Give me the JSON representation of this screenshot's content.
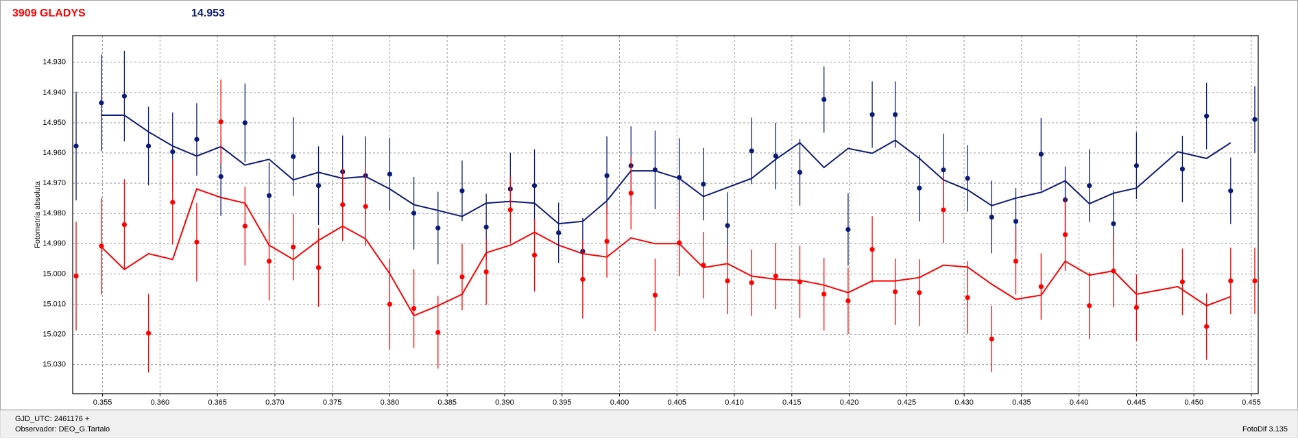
{
  "chart_data": {
    "type": "scatter",
    "title": "3909 GLADYS",
    "subtitle": "14.953",
    "y_label": "Fotometría absoluta",
    "xlim": [
      0.3524,
      0.4556
    ],
    "ylim": [
      15.0396,
      14.9212
    ],
    "grid": true,
    "xticks": [
      0.355,
      {
        "value": 0.36,
        "label": "0.360"
      },
      0.365,
      {
        "value": 0.37,
        "label": "0.370"
      },
      0.375,
      {
        "value": 0.38,
        "label": "0.380"
      },
      0.385,
      {
        "value": 0.39,
        "label": "0.390"
      },
      0.395,
      {
        "value": 0.4,
        "label": "0.400"
      },
      0.405,
      {
        "value": 0.41,
        "label": "0.410"
      },
      0.415,
      {
        "value": 0.42,
        "label": "0.420"
      },
      0.425,
      {
        "value": 0.43,
        "label": "0.430"
      },
      0.435,
      {
        "value": 0.44,
        "label": "0.440"
      },
      0.445,
      {
        "value": 0.45,
        "label": "0.450"
      },
      0.455
    ],
    "yticks": [
      {
        "value": 14.93,
        "label": "14.930"
      },
      {
        "value": 14.94,
        "label": "14.940"
      },
      {
        "value": 14.95,
        "label": "14.950"
      },
      {
        "value": 14.96,
        "label": "14.960"
      },
      {
        "value": 14.97,
        "label": "14.970"
      },
      {
        "value": 14.98,
        "label": "14.980"
      },
      {
        "value": 14.99,
        "label": "14.990"
      },
      {
        "value": 15.0,
        "label": "15.000"
      },
      {
        "value": 15.01,
        "label": "15.010"
      },
      {
        "value": 15.02,
        "label": "15.020"
      },
      {
        "value": 15.03,
        "label": "15.030"
      }
    ],
    "series": [
      {
        "mode": "line",
        "color": "#0b1a78",
        "x": [
          0.3549,
          0.3569,
          0.359,
          0.3611,
          0.3632,
          0.3653,
          0.3674,
          0.3695,
          0.3716,
          0.3738,
          0.3759,
          0.3779,
          0.38,
          0.3821,
          0.3842,
          0.3863,
          0.3884,
          0.3905,
          0.3926,
          0.3947,
          0.3968,
          0.3989,
          0.401,
          0.4031,
          0.4052,
          0.4073,
          0.4094,
          0.4115,
          0.4136,
          0.4157,
          0.4178,
          0.4199,
          0.422,
          0.424,
          0.4261,
          0.4282,
          0.4303,
          0.4324,
          0.4345,
          0.4367,
          0.4388,
          0.4409,
          0.443,
          0.445,
          0.4486,
          0.4511,
          0.4532
        ],
        "values": [
          14.9475,
          14.9475,
          14.953,
          14.9577,
          14.961,
          14.9579,
          14.964,
          14.9621,
          14.9689,
          14.9664,
          14.9684,
          14.9678,
          14.9719,
          14.9771,
          14.979,
          14.981,
          14.9766,
          14.976,
          14.9766,
          14.9834,
          14.9826,
          14.9758,
          14.9659,
          14.9659,
          14.9684,
          14.9744,
          14.9714,
          14.9684,
          14.9621,
          14.9566,
          14.9648,
          14.9585,
          14.9601,
          14.9558,
          14.9618,
          14.9689,
          14.9722,
          14.9774,
          14.9749,
          14.973,
          14.9692,
          14.9768,
          14.9733,
          14.9716,
          14.9596,
          14.9618,
          14.9566
        ]
      },
      {
        "mode": "line",
        "color": "#ff0000",
        "x": [
          0.3549,
          0.3569,
          0.359,
          0.3611,
          0.3632,
          0.3653,
          0.3674,
          0.3695,
          0.3716,
          0.3738,
          0.3759,
          0.3779,
          0.38,
          0.3821,
          0.3842,
          0.3863,
          0.3884,
          0.3905,
          0.3926,
          0.3947,
          0.3968,
          0.3989,
          0.401,
          0.4031,
          0.4052,
          0.4073,
          0.4094,
          0.4115,
          0.4136,
          0.4157,
          0.4178,
          0.4199,
          0.422,
          0.424,
          0.4261,
          0.4282,
          0.4303,
          0.4324,
          0.4345,
          0.4367,
          0.4388,
          0.4409,
          0.443,
          0.445,
          0.4486,
          0.4511,
          0.4532
        ],
        "values": [
          14.9911,
          14.9985,
          14.9933,
          14.9952,
          14.9719,
          14.9747,
          14.9766,
          14.9905,
          14.9952,
          14.9889,
          14.9842,
          14.9884,
          14.9999,
          15.0138,
          15.0105,
          15.0067,
          14.993,
          14.9905,
          14.9862,
          14.9905,
          14.9933,
          14.9944,
          14.9881,
          14.99,
          14.99,
          14.9979,
          14.9966,
          15.0007,
          15.0018,
          15.0021,
          15.0037,
          15.0062,
          15.0023,
          15.0023,
          15.0012,
          14.9971,
          14.9977,
          15.0034,
          15.0084,
          15.007,
          14.9958,
          15.0004,
          14.999,
          15.0067,
          15.0042,
          15.0105,
          15.0075
        ]
      },
      {
        "mode": "points",
        "color": "#0b1a78",
        "x": [
          0.3527,
          0.3549,
          0.3569,
          0.359,
          0.3611,
          0.3632,
          0.3653,
          0.3674,
          0.3695,
          0.3716,
          0.3738,
          0.3759,
          0.3779,
          0.38,
          0.3821,
          0.3842,
          0.3863,
          0.3884,
          0.3905,
          0.3926,
          0.3947,
          0.3968,
          0.3989,
          0.401,
          0.4031,
          0.4052,
          0.4073,
          0.4094,
          0.4115,
          0.4136,
          0.4157,
          0.4178,
          0.4199,
          0.422,
          0.424,
          0.4261,
          0.4282,
          0.4303,
          0.4324,
          0.4345,
          0.4367,
          0.4388,
          0.4409,
          0.443,
          0.445,
          0.449,
          0.4511,
          0.4532,
          0.4553
        ],
        "values": [
          14.9577,
          14.9434,
          14.9412,
          14.9577,
          14.9596,
          14.9555,
          14.9678,
          14.95,
          14.9741,
          14.9612,
          14.9708,
          14.9662,
          14.9675,
          14.967,
          14.9799,
          14.9848,
          14.9725,
          14.9845,
          14.9719,
          14.9708,
          14.9864,
          14.9925,
          14.9675,
          14.9642,
          14.9656,
          14.9681,
          14.9703,
          14.984,
          14.9593,
          14.961,
          14.9664,
          14.9423,
          14.9853,
          14.9473,
          14.9473,
          14.9716,
          14.9656,
          14.9684,
          14.9812,
          14.9826,
          14.9604,
          14.9755,
          14.9708,
          14.9834,
          14.9642,
          14.9653,
          14.9478,
          14.9725,
          14.9489
        ],
        "errors": [
          0.018,
          0.016,
          0.015,
          0.013,
          0.013,
          0.012,
          0.013,
          0.013,
          0.011,
          0.013,
          0.013,
          0.012,
          0.013,
          0.012,
          0.012,
          0.012,
          0.01,
          0.011,
          0.012,
          0.012,
          0.01,
          0.011,
          0.013,
          0.013,
          0.013,
          0.013,
          0.012,
          0.011,
          0.011,
          0.011,
          0.011,
          0.011,
          0.012,
          0.011,
          0.011,
          0.011,
          0.012,
          0.011,
          0.012,
          0.011,
          0.012,
          0.011,
          0.012,
          0.011,
          0.011,
          0.011,
          0.011,
          0.011,
          0.011
        ]
      },
      {
        "mode": "points",
        "color": "#ff0000",
        "x": [
          0.3527,
          0.3549,
          0.3569,
          0.359,
          0.3611,
          0.3632,
          0.3653,
          0.3674,
          0.3695,
          0.3716,
          0.3738,
          0.3759,
          0.3779,
          0.38,
          0.3821,
          0.3842,
          0.3863,
          0.3884,
          0.3905,
          0.3926,
          0.3968,
          0.3989,
          0.401,
          0.4031,
          0.4052,
          0.4073,
          0.4094,
          0.4115,
          0.4136,
          0.4157,
          0.4178,
          0.4199,
          0.422,
          0.424,
          0.4261,
          0.4282,
          0.4303,
          0.4324,
          0.4345,
          0.4367,
          0.4388,
          0.4409,
          0.443,
          0.445,
          0.449,
          0.4511,
          0.4532,
          0.4553
        ],
        "values": [
          15.0007,
          14.9908,
          14.9837,
          15.0196,
          14.9763,
          14.9895,
          14.9497,
          14.9842,
          14.9958,
          14.9911,
          14.9979,
          14.9771,
          14.9777,
          15.01,
          15.0114,
          15.0193,
          15.001,
          14.9993,
          14.9788,
          14.9938,
          15.0018,
          14.9892,
          14.9733,
          15.007,
          14.9897,
          14.9971,
          15.0023,
          15.0029,
          15.0007,
          15.0026,
          15.0067,
          15.0089,
          14.9919,
          15.0059,
          15.0062,
          14.9788,
          15.0078,
          15.0215,
          14.9958,
          15.0042,
          14.987,
          15.0105,
          14.999,
          15.0111,
          15.0026,
          15.0174,
          15.0023,
          15.0023
        ],
        "errors": [
          0.018,
          0.016,
          0.015,
          0.013,
          0.014,
          0.013,
          0.014,
          0.013,
          0.013,
          0.011,
          0.013,
          0.012,
          0.013,
          0.015,
          0.013,
          0.012,
          0.011,
          0.011,
          0.011,
          0.012,
          0.013,
          0.012,
          0.012,
          0.012,
          0.011,
          0.011,
          0.011,
          0.011,
          0.011,
          0.012,
          0.012,
          0.011,
          0.011,
          0.011,
          0.011,
          0.011,
          0.012,
          0.011,
          0.011,
          0.011,
          0.012,
          0.011,
          0.012,
          0.011,
          0.011,
          0.011,
          0.011,
          0.011
        ]
      }
    ]
  },
  "footer": {
    "date_label": "GJD_UTC: 2461176 +",
    "observer": "Observador: DEO_G.Tartalo",
    "software": "FotoDif 3.135"
  }
}
